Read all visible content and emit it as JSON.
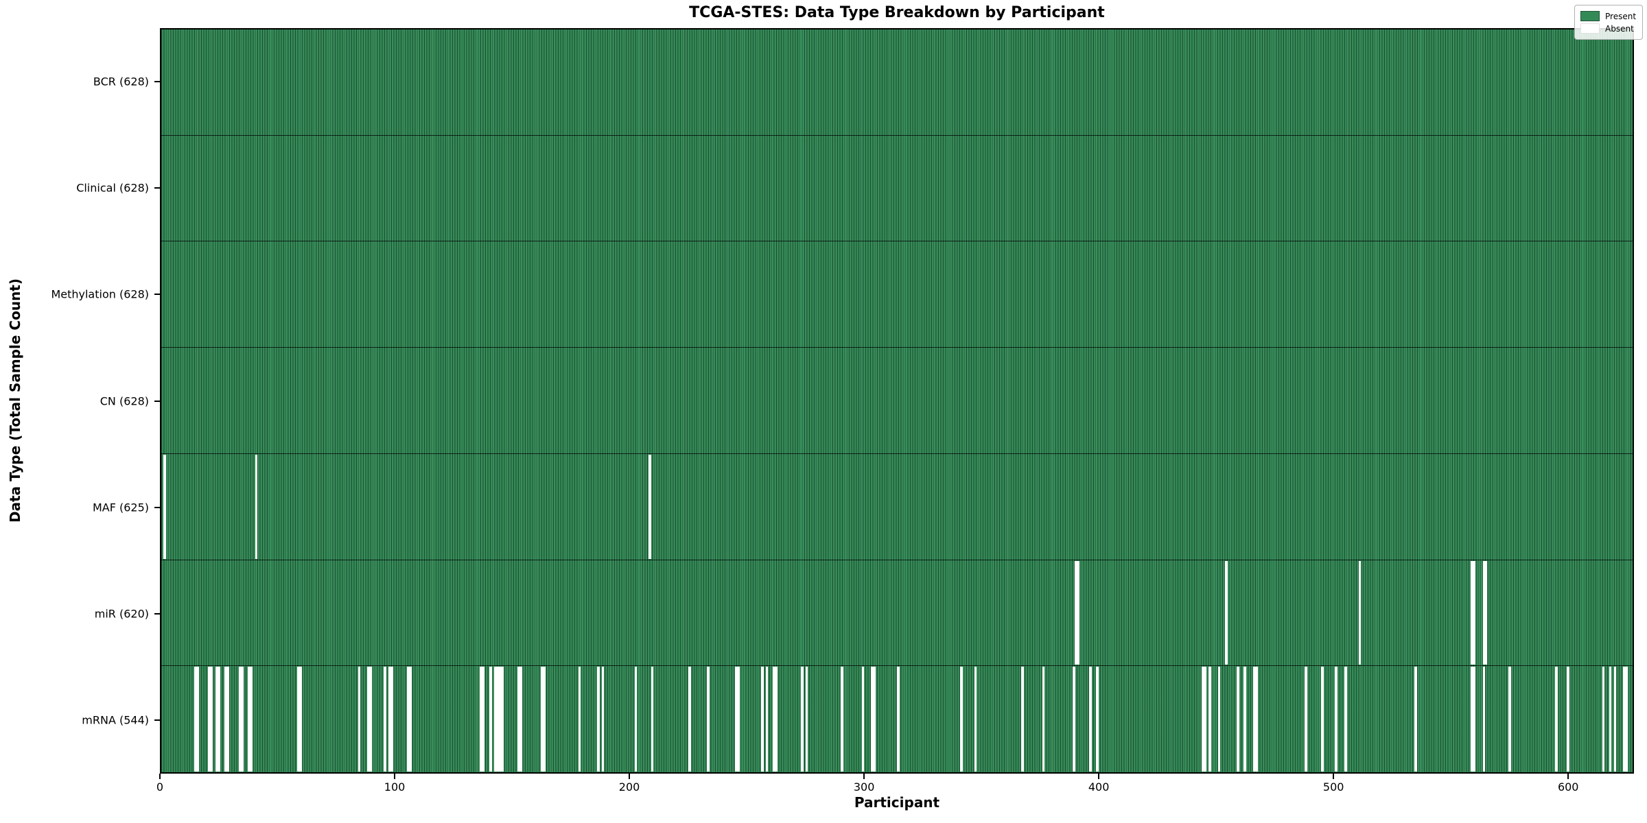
{
  "title": "TCGA-STES: Data Type Breakdown by Participant",
  "xlabel": "Participant",
  "ylabel": "Data Type (Total Sample Count)",
  "colors": {
    "present": "#348a57",
    "absent": "#ffffff",
    "bar_edge": "#1d5435",
    "axis": "#000000"
  },
  "legend": {
    "present_label": "Present",
    "absent_label": "Absent"
  },
  "chart_data": {
    "type": "heatmap",
    "title": "TCGA-STES: Data Type Breakdown by Participant",
    "xlabel": "Participant",
    "ylabel": "Data Type (Total Sample Count)",
    "legend_position": "upper right",
    "grid": false,
    "n_participants": 628,
    "x_axis": {
      "min": 0,
      "max": 628,
      "tick_values": [
        0,
        100,
        200,
        300,
        400,
        500,
        600
      ],
      "tick_labels": [
        "0",
        "100",
        "200",
        "300",
        "400",
        "500",
        "600"
      ]
    },
    "value_encoding": {
      "present": "#348a57",
      "absent": "#ffffff"
    },
    "rows": [
      {
        "name": "BCR",
        "label": "BCR (628)",
        "present_count": 628,
        "absent_indices": []
      },
      {
        "name": "Clinical",
        "label": "Clinical (628)",
        "present_count": 628,
        "absent_indices": []
      },
      {
        "name": "Methylation",
        "label": "Methylation (628)",
        "present_count": 628,
        "absent_indices": []
      },
      {
        "name": "CN",
        "label": "CN (628)",
        "present_count": 628,
        "absent_indices": []
      },
      {
        "name": "MAF",
        "label": "MAF (625)",
        "present_count": 625,
        "absent_indices": [
          1,
          40,
          208
        ]
      },
      {
        "name": "miR",
        "label": "miR (620)",
        "present_count": 620,
        "absent_indices": [
          390,
          391,
          454,
          511,
          559,
          560,
          564,
          565
        ]
      },
      {
        "name": "mRNA",
        "label": "mRNA (544)",
        "present_count": 544,
        "absent_indices": [
          14,
          15,
          20,
          21,
          23,
          24,
          27,
          28,
          33,
          34,
          37,
          38,
          58,
          59,
          84,
          88,
          89,
          95,
          97,
          98,
          105,
          106,
          136,
          137,
          140,
          142,
          143,
          144,
          145,
          152,
          153,
          162,
          163,
          178,
          186,
          188,
          202,
          209,
          225,
          233,
          245,
          246,
          256,
          258,
          261,
          262,
          273,
          275,
          290,
          299,
          303,
          304,
          314,
          341,
          347,
          367,
          376,
          389,
          396,
          399,
          444,
          445,
          447,
          451,
          459,
          462,
          466,
          467,
          488,
          495,
          501,
          505,
          535,
          559,
          560,
          564,
          575,
          595,
          600,
          615,
          618,
          620,
          624,
          625
        ]
      }
    ]
  }
}
